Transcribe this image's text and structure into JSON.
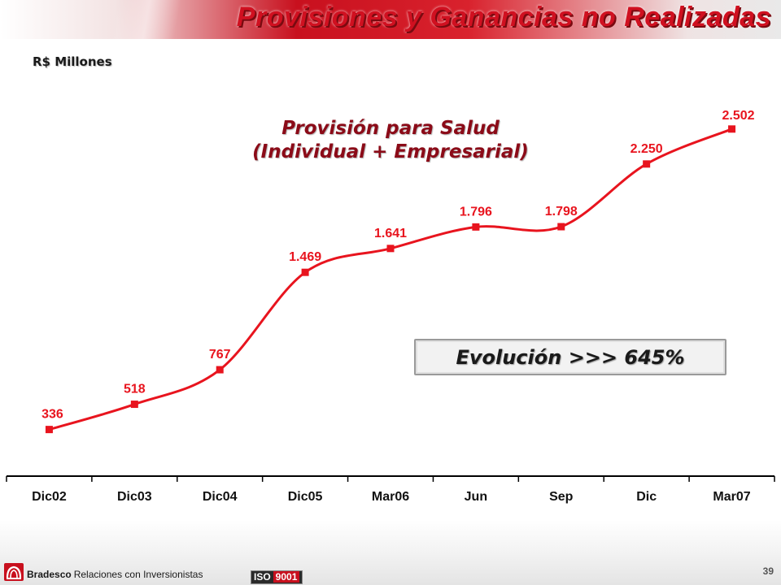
{
  "header": {
    "title": "Provisiones y Ganancias no Realizadas"
  },
  "unit_label": "R$ Millones",
  "chart_data": {
    "type": "line",
    "title_line1": "Provisión para Salud",
    "title_line2": "(Individual + Empresarial)",
    "categories": [
      "Dic02",
      "Dic03",
      "Dic04",
      "Dic05",
      "Mar06",
      "Jun",
      "Sep",
      "Dic",
      "Mar07"
    ],
    "values": [
      336,
      518,
      767,
      1469,
      1641,
      1796,
      1798,
      2250,
      2502
    ],
    "data_labels": [
      "336",
      "518",
      "767",
      "1.469",
      "1.641",
      "1.796",
      "1.798",
      "2.250",
      "2.502"
    ],
    "ylim": [
      0,
      2700
    ],
    "grid": false,
    "series_color": "#e8141e",
    "label_color": "#e8141e"
  },
  "callout": {
    "text": "Evolución >>> 645%"
  },
  "footer": {
    "brand": "Bradesco",
    "subtitle": "Relaciones  con Inversionistas",
    "iso_prefix": "ISO",
    "iso_number": "9001",
    "page_number": "39"
  }
}
